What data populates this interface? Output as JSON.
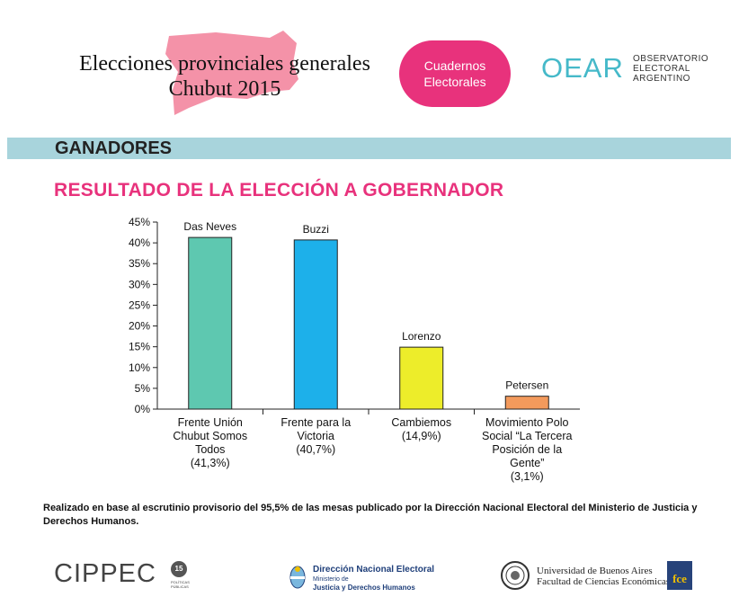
{
  "header": {
    "title_line1": "Elecciones provinciales generales",
    "title_line2": "Chubut 2015",
    "badge_line1": "Cuadernos",
    "badge_line2": "Electorales",
    "oear_mark": "OEAR",
    "oear_line1": "OBSERVATORIO",
    "oear_line2": "ELECTORAL",
    "oear_line3": "ARGENTINO"
  },
  "section": {
    "label": "GANADORES"
  },
  "colors": {
    "accent_pink": "#e8327c",
    "section_bar": "#a8d4dc",
    "map_pink": "#f492a8",
    "oear_teal": "#45b9c9"
  },
  "chart_data": {
    "type": "bar",
    "title": "RESULTADO DE LA ELECCIÓN A GOBERNADOR",
    "xlabel": "",
    "ylabel": "",
    "ylim": [
      0,
      45
    ],
    "ytick_step": 5,
    "y_ticks": [
      "0%",
      "5%",
      "10%",
      "15%",
      "20%",
      "25%",
      "30%",
      "35%",
      "40%",
      "45%"
    ],
    "grid": false,
    "categories": [
      {
        "label_lines": [
          "Frente Unión",
          "Chubut Somos",
          "Todos",
          "(41,3%)"
        ]
      },
      {
        "label_lines": [
          "Frente para la",
          "Victoria",
          "(40,7%)"
        ]
      },
      {
        "label_lines": [
          "Cambiemos",
          "(14,9%)"
        ]
      },
      {
        "label_lines": [
          "Movimiento Polo",
          "Social “La Tercera",
          "Posición de la",
          "Gente”",
          "(3,1%)"
        ]
      }
    ],
    "values": [
      41.3,
      40.7,
      14.9,
      3.1
    ],
    "data_labels": [
      "Das Neves",
      "Buzzi",
      "Lorenzo",
      "Petersen"
    ],
    "bar_colors": [
      "#5ec8b0",
      "#1db0ea",
      "#eded2a",
      "#f39a5c"
    ]
  },
  "footnote": "Realizado en base al escrutinio provisorio del 95,5% de las mesas publicado por la Dirección Nacional Electoral del Ministerio de Justicia y Derechos Humanos.",
  "footer": {
    "cippec": "CIPPEC",
    "cippec_badge": "15",
    "cippec_sub1": "POLÍTICAS",
    "cippec_sub2": "PÚBLICAS",
    "dne_line1": "Dirección Nacional Electoral",
    "dne_line2": "Ministerio de",
    "dne_line3": "Justicia y Derechos Humanos",
    "uba_line1": "Universidad de Buenos Aires",
    "uba_line2": "Facultad de Ciencias Económicas",
    "fce_mark": "fce"
  }
}
